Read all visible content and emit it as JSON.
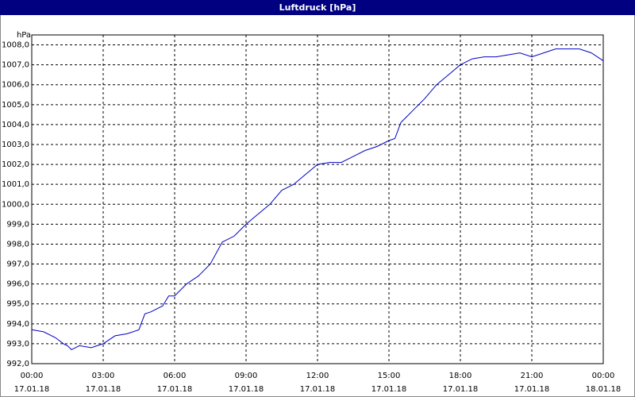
{
  "chart_data": {
    "type": "line",
    "title": "Luftdruck [hPa]",
    "y_label": "hPa",
    "x": [
      0,
      0.5,
      1,
      1.33,
      1.5,
      1.67,
      2,
      2.5,
      3,
      3.5,
      4,
      4.5,
      4.75,
      5,
      5.5,
      5.75,
      6,
      6.5,
      7,
      7.5,
      8,
      8.5,
      9,
      9.5,
      10,
      10.5,
      11,
      11.5,
      12,
      12.5,
      13,
      13.5,
      14,
      14.5,
      15,
      15.25,
      15.5,
      16,
      16.5,
      17,
      17.5,
      18,
      18.5,
      19,
      19.5,
      20,
      20.5,
      21,
      21.5,
      22,
      22.5,
      23,
      23.5,
      24
    ],
    "series": [
      {
        "name": "Luftdruck",
        "color": "#0000c8",
        "values": [
          993.7,
          993.6,
          993.3,
          993.0,
          992.9,
          992.7,
          992.9,
          992.8,
          993.0,
          993.4,
          993.5,
          993.7,
          994.5,
          994.6,
          994.9,
          995.4,
          995.4,
          996.0,
          996.4,
          997.0,
          998.1,
          998.4,
          999.0,
          999.5,
          1000.0,
          1000.7,
          1001.0,
          1001.5,
          1002.0,
          1002.1,
          1002.1,
          1002.4,
          1002.7,
          1002.9,
          1003.2,
          1003.3,
          1004.1,
          1004.7,
          1005.3,
          1006.0,
          1006.5,
          1007.0,
          1007.3,
          1007.4,
          1007.4,
          1007.5,
          1007.6,
          1007.4,
          1007.6,
          1007.8,
          1007.8,
          1007.8,
          1007.6,
          1007.2
        ]
      }
    ],
    "xlim": [
      0,
      24
    ],
    "xticks": [
      {
        "value": 0,
        "label": "00:00"
      },
      {
        "value": 3,
        "label": "03:00"
      },
      {
        "value": 6,
        "label": "06:00"
      },
      {
        "value": 9,
        "label": "09:00"
      },
      {
        "value": 12,
        "label": "12:00"
      },
      {
        "value": 15,
        "label": "15:00"
      },
      {
        "value": 18,
        "label": "18:00"
      },
      {
        "value": 21,
        "label": "21:00"
      },
      {
        "value": 24,
        "label": "00:00"
      }
    ],
    "xtick_dates": [
      "17.01.18",
      "17.01.18",
      "17.01.18",
      "17.01.18",
      "17.01.18",
      "17.01.18",
      "17.01.18",
      "17.01.18",
      "18.01.18"
    ],
    "ylim": [
      992,
      1008.5
    ],
    "yticks": [
      {
        "value": 992,
        "label": "992,0"
      },
      {
        "value": 993,
        "label": "993,0"
      },
      {
        "value": 994,
        "label": "994,0"
      },
      {
        "value": 995,
        "label": "995,0"
      },
      {
        "value": 996,
        "label": "996,0"
      },
      {
        "value": 997,
        "label": "997,0"
      },
      {
        "value": 998,
        "label": "998,0"
      },
      {
        "value": 999,
        "label": "999,0"
      },
      {
        "value": 1000,
        "label": "1000,0"
      },
      {
        "value": 1001,
        "label": "1001,0"
      },
      {
        "value": 1002,
        "label": "1002,0"
      },
      {
        "value": 1003,
        "label": "1003,0"
      },
      {
        "value": 1004,
        "label": "1004,0"
      },
      {
        "value": 1005,
        "label": "1005,0"
      },
      {
        "value": 1006,
        "label": "1006,0"
      },
      {
        "value": 1007,
        "label": "1007,0"
      },
      {
        "value": 1008,
        "label": "1008,0"
      }
    ],
    "grid": true
  }
}
